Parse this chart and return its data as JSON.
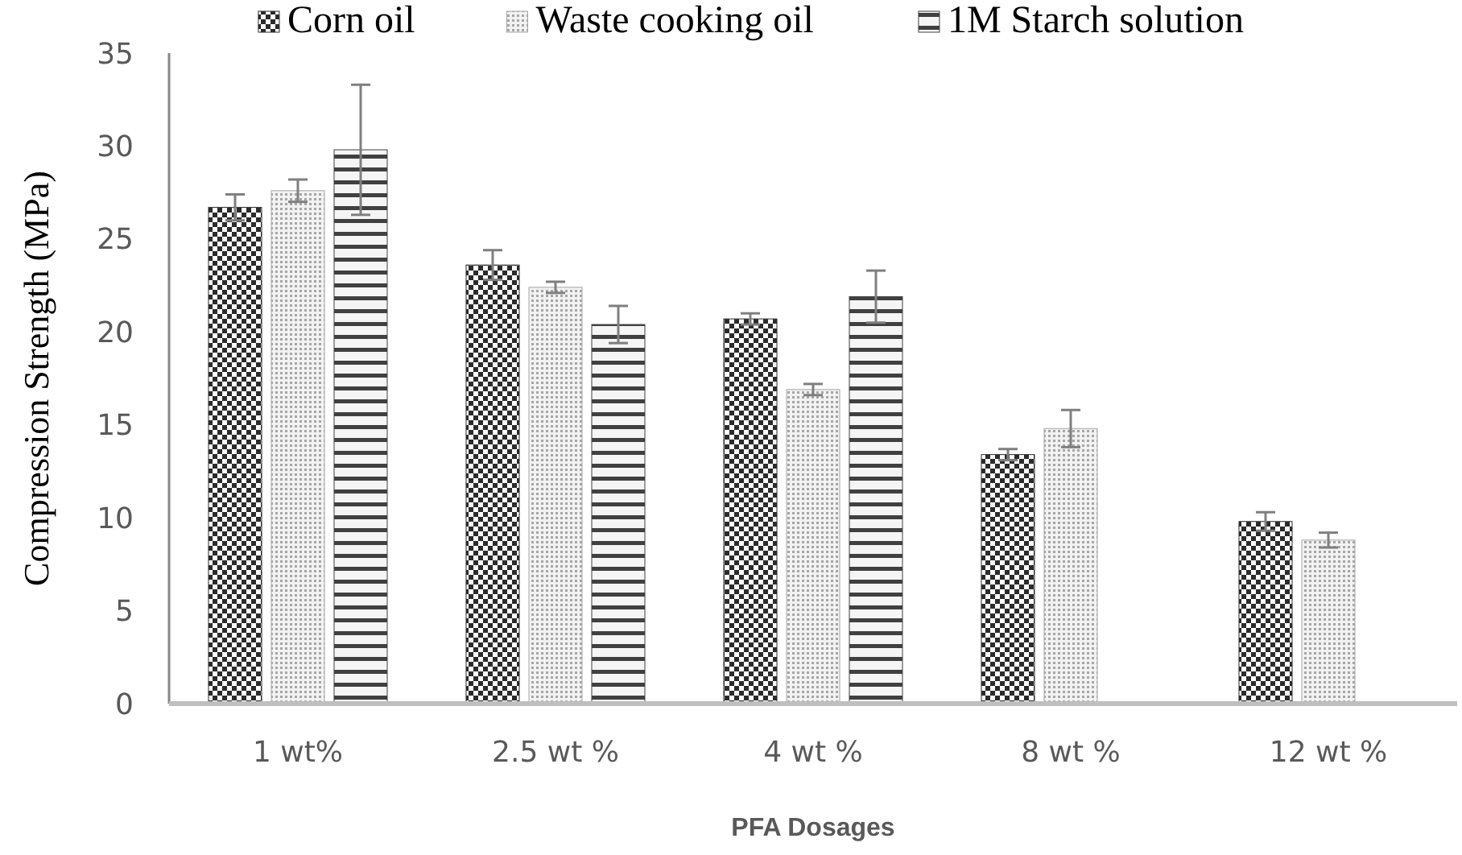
{
  "chart_data": {
    "type": "bar",
    "xlabel": "PFA Dosages",
    "ylabel": "Compression Strength (MPa)",
    "categories": [
      "1 wt%",
      "2.5 wt %",
      "4 wt %",
      "8 wt %",
      "12 wt %"
    ],
    "series": [
      {
        "name": "Corn oil",
        "color": "#2b2b2b",
        "values": [
          26.7,
          23.6,
          20.7,
          13.4,
          9.8
        ],
        "errors": [
          0.7,
          0.8,
          0.3,
          0.3,
          0.5
        ]
      },
      {
        "name": "Waste cooking oil",
        "color": "#a6a6a6",
        "values": [
          27.6,
          22.4,
          16.9,
          14.8,
          8.8
        ],
        "errors": [
          0.6,
          0.3,
          0.3,
          1.0,
          0.4
        ]
      },
      {
        "name": "1M Starch solution",
        "color": "#404040",
        "values": [
          29.8,
          20.4,
          21.9,
          null,
          null
        ],
        "errors": [
          3.5,
          1.0,
          1.4,
          null,
          null
        ]
      }
    ],
    "ylim": [
      0,
      35
    ],
    "yticks": [
      0,
      5,
      10,
      15,
      20,
      25,
      30,
      35
    ],
    "grid": false,
    "legend": "top"
  }
}
